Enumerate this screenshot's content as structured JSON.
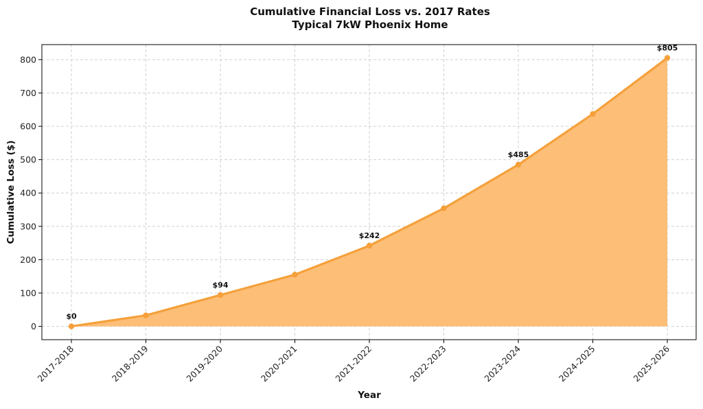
{
  "chart_data": {
    "type": "area",
    "title": "Cumulative Financial Loss vs. 2017 Rates",
    "subtitle": "Typical 7kW Phoenix Home",
    "xlabel": "Year",
    "ylabel": "Cumulative Loss ($)",
    "categories": [
      "2017-2018",
      "2018-2019",
      "2019-2020",
      "2020-2021",
      "2021-2022",
      "2022-2023",
      "2023-2024",
      "2024-2025",
      "2025-2026"
    ],
    "series": [
      {
        "values": [
          0,
          33,
          94,
          155,
          242,
          354,
          485,
          637,
          805
        ]
      }
    ],
    "data_labels": [
      {
        "index": 0,
        "text": "$0"
      },
      {
        "index": 2,
        "text": "$94"
      },
      {
        "index": 4,
        "text": "$242"
      },
      {
        "index": 6,
        "text": "$485"
      },
      {
        "index": 8,
        "text": "$805"
      }
    ],
    "ylim": [
      -40,
      845
    ],
    "yticks": [
      0,
      100,
      200,
      300,
      400,
      500,
      600,
      700,
      800
    ],
    "grid": true,
    "line_color": "#f5a03a",
    "fill_color": "#fdbe77"
  }
}
